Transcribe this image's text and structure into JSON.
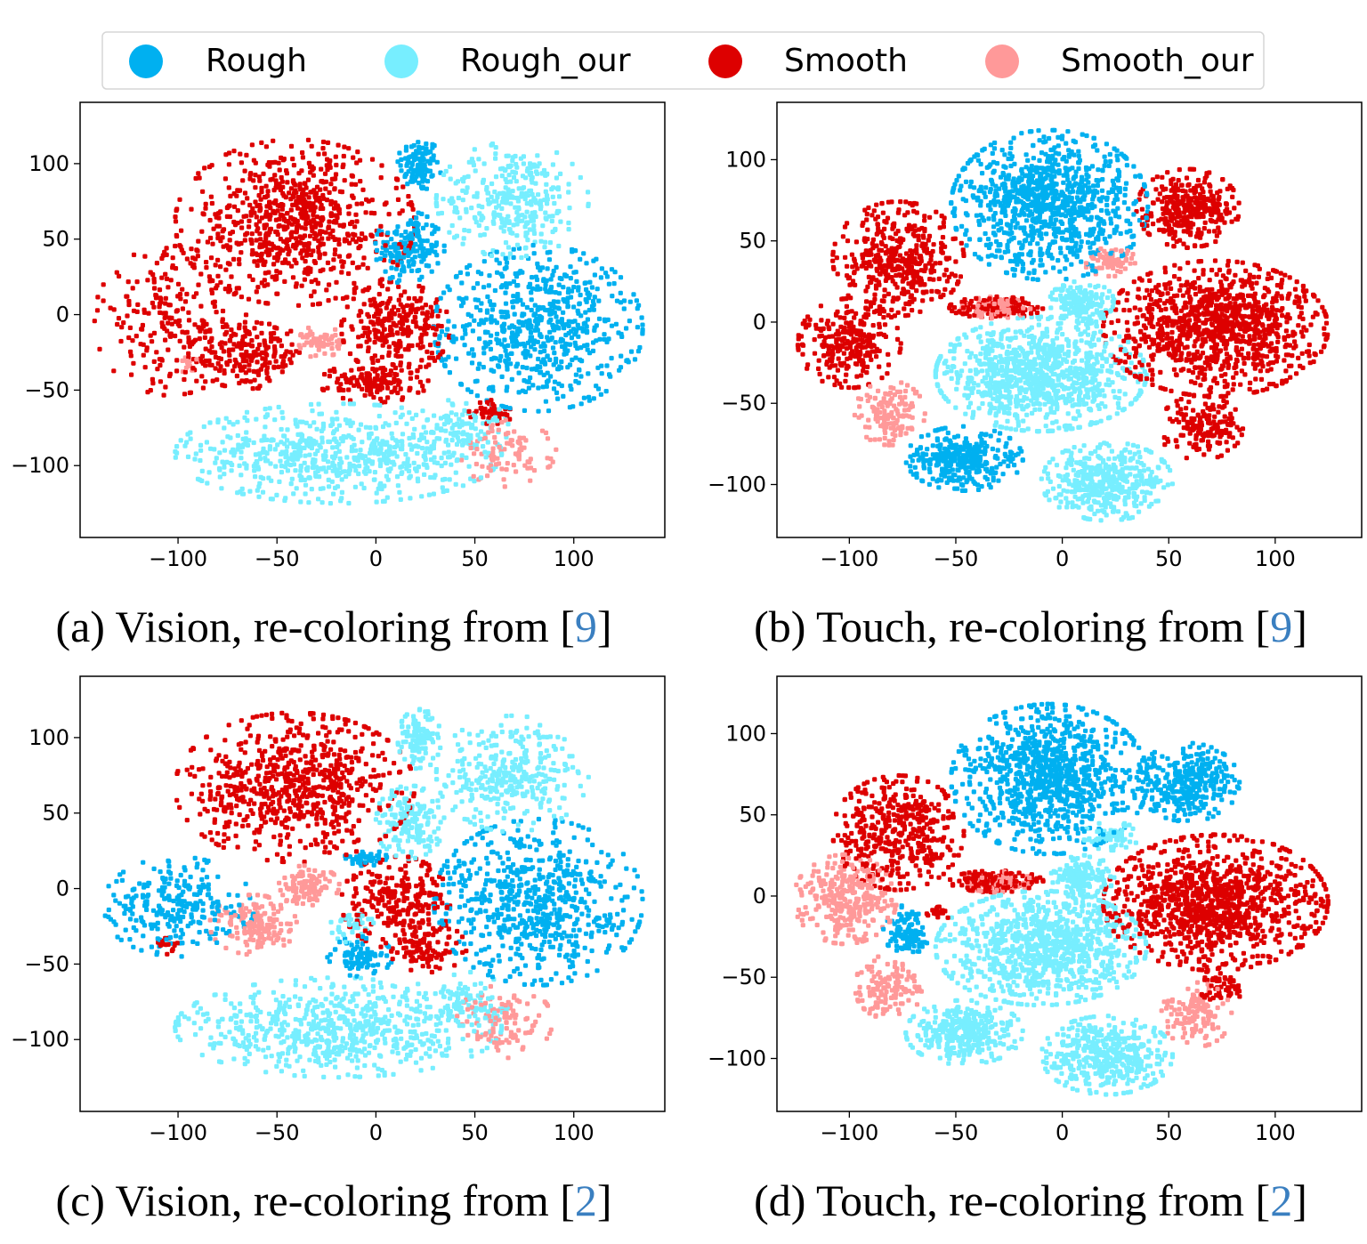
{
  "legend": {
    "entries": [
      {
        "name": "Rough",
        "color": "#00b0f0"
      },
      {
        "name": "Rough_our",
        "color": "#77eeff"
      },
      {
        "name": "Smooth",
        "color": "#dd0000"
      },
      {
        "name": "Smooth_our",
        "color": "#ff9999"
      }
    ]
  },
  "chart_data": [
    {
      "type": "scatter",
      "caption": {
        "prefix": "(a) Vision, re-coloring from [",
        "ref": "9",
        "suffix": "]"
      },
      "xlim": [
        -149.5,
        146
      ],
      "ylim": [
        -147.6,
        140.6
      ],
      "xticks": [
        -100,
        -50,
        0,
        50,
        100
      ],
      "yticks": [
        -100,
        -50,
        0,
        50,
        100
      ],
      "grid": false,
      "series": [
        {
          "name": "Rough",
          "clusters": [
            [
              22,
              99,
              10,
              18,
              110
            ],
            [
              17,
              44,
              16,
              22,
              170
            ],
            [
              82,
              -9,
              48,
              50,
              650
            ]
          ]
        },
        {
          "name": "Rough_our",
          "clusters": [
            [
              69,
              76,
              35,
              35,
              320
            ],
            [
              -19,
              -92,
              75,
              30,
              650
            ],
            [
              45,
              -75,
              20,
              18,
              90
            ]
          ]
        },
        {
          "name": "Smooth",
          "clusters": [
            [
              -41,
              61,
              55,
              50,
              750
            ],
            [
              -104,
              -4,
              35,
              45,
              220
            ],
            [
              -64,
              -27,
              28,
              20,
              200
            ],
            [
              10,
              -9,
              25,
              28,
              270
            ],
            [
              -1,
              -45,
              25,
              12,
              130
            ],
            [
              58,
              -65,
              10,
              8,
              45
            ]
          ]
        },
        {
          "name": "Smooth_our",
          "clusters": [
            [
              -28,
              -18,
              10,
              10,
              55
            ],
            [
              67,
              -92,
              22,
              20,
              90
            ],
            [
              -95,
              -33,
              5,
              5,
              12
            ]
          ]
        }
      ]
    },
    {
      "type": "scatter",
      "caption": {
        "prefix": "(b) Touch, re-coloring from [",
        "ref": "9",
        "suffix": "]"
      },
      "xlim": [
        -134,
        140.6
      ],
      "ylim": [
        -132.6,
        135.3
      ],
      "xticks": [
        -100,
        -50,
        0,
        50,
        100
      ],
      "yticks": [
        -100,
        -50,
        0,
        50,
        100
      ],
      "grid": false,
      "series": [
        {
          "name": "Rough",
          "clusters": [
            [
              -6,
              72,
              42,
              42,
              950
            ],
            [
              -46,
              -84,
              25,
              18,
              320
            ]
          ]
        },
        {
          "name": "Rough_our",
          "clusters": [
            [
              -10,
              -32,
              45,
              32,
              950
            ],
            [
              9,
              12,
              14,
              12,
              160
            ],
            [
              21,
              -98,
              28,
              22,
              420
            ]
          ]
        },
        {
          "name": "Smooth",
          "clusters": [
            [
              -77,
              39,
              28,
              32,
              420
            ],
            [
              -100,
              -13,
              22,
              25,
              270
            ],
            [
              59,
              70,
              22,
              22,
              320
            ],
            [
              72,
              -4,
              48,
              38,
              1050
            ],
            [
              65,
              -65,
              18,
              18,
              160
            ],
            [
              -31,
              9,
              20,
              6,
              150
            ]
          ]
        },
        {
          "name": "Smooth_our",
          "clusters": [
            [
              23,
              37,
              12,
              8,
              65
            ],
            [
              -81,
              -56,
              15,
              18,
              130
            ],
            [
              -31,
              9,
              15,
              6,
              90
            ]
          ]
        }
      ]
    },
    {
      "type": "scatter",
      "caption": {
        "prefix": "(c) Vision, re-coloring from [",
        "ref": "2",
        "suffix": "]"
      },
      "xlim": [
        -149.5,
        146
      ],
      "ylim": [
        -147.6,
        140.6
      ],
      "xticks": [
        -100,
        -50,
        0,
        50,
        100
      ],
      "yticks": [
        -100,
        -50,
        0,
        50,
        100
      ],
      "grid": false,
      "series": [
        {
          "name": "Rough",
          "clusters": [
            [
              -100,
              -12,
              35,
              30,
              260
            ],
            [
              -5,
              20,
              10,
              5,
              45
            ],
            [
              -8,
              -45,
              15,
              12,
              90
            ],
            [
              82,
              -9,
              48,
              50,
              650
            ]
          ]
        },
        {
          "name": "Rough_our",
          "clusters": [
            [
              22,
              99,
              10,
              18,
              110
            ],
            [
              17,
              44,
              16,
              22,
              170
            ],
            [
              69,
              76,
              35,
              35,
              320
            ],
            [
              -19,
              -92,
              75,
              30,
              650
            ],
            [
              45,
              -75,
              20,
              18,
              90
            ],
            [
              -12,
              -25,
              10,
              10,
              40
            ]
          ]
        },
        {
          "name": "Smooth",
          "clusters": [
            [
              -41,
              67,
              55,
              45,
              700
            ],
            [
              10,
              -9,
              25,
              28,
              270
            ],
            [
              26,
              -39,
              18,
              15,
              90
            ],
            [
              -106,
              -38,
              6,
              5,
              15
            ]
          ]
        },
        {
          "name": "Smooth_our",
          "clusters": [
            [
              -35,
              2,
              15,
              12,
              110
            ],
            [
              -62,
              -24,
              20,
              18,
              160
            ],
            [
              65,
              -88,
              22,
              22,
              110
            ]
          ]
        }
      ]
    },
    {
      "type": "scatter",
      "caption": {
        "prefix": "(d) Touch, re-coloring from [",
        "ref": "2",
        "suffix": "]"
      },
      "xlim": [
        -134,
        140.6
      ],
      "ylim": [
        -132.6,
        135.3
      ],
      "xticks": [
        -100,
        -50,
        0,
        50,
        100
      ],
      "yticks": [
        -100,
        -50,
        0,
        50,
        100
      ],
      "grid": false,
      "series": [
        {
          "name": "Rough",
          "clusters": [
            [
              -6,
              72,
              42,
              42,
              950
            ],
            [
              59,
              70,
              22,
              22,
              320
            ],
            [
              -73,
              -21,
              10,
              14,
              100
            ]
          ]
        },
        {
          "name": "Rough_our",
          "clusters": [
            [
              -10,
              -32,
              45,
              32,
              950
            ],
            [
              9,
              12,
              14,
              12,
              160
            ],
            [
              21,
              -98,
              28,
              22,
              420
            ],
            [
              -46,
              -84,
              25,
              18,
              320
            ],
            [
              23,
              37,
              12,
              8,
              65
            ]
          ]
        },
        {
          "name": "Smooth",
          "clusters": [
            [
              -77,
              39,
              28,
              32,
              420
            ],
            [
              72,
              -4,
              48,
              38,
              1050
            ],
            [
              75,
              -55,
              10,
              10,
              60
            ],
            [
              -31,
              9,
              20,
              6,
              150
            ],
            [
              -58,
              -10,
              6,
              4,
              20
            ]
          ]
        },
        {
          "name": "Smooth_our",
          "clusters": [
            [
              -102,
              -2,
              22,
              25,
              300
            ],
            [
              -81,
              -56,
              15,
              18,
              130
            ],
            [
              63,
              -73,
              15,
              18,
              120
            ],
            [
              -31,
              9,
              15,
              6,
              90
            ]
          ]
        }
      ]
    }
  ]
}
